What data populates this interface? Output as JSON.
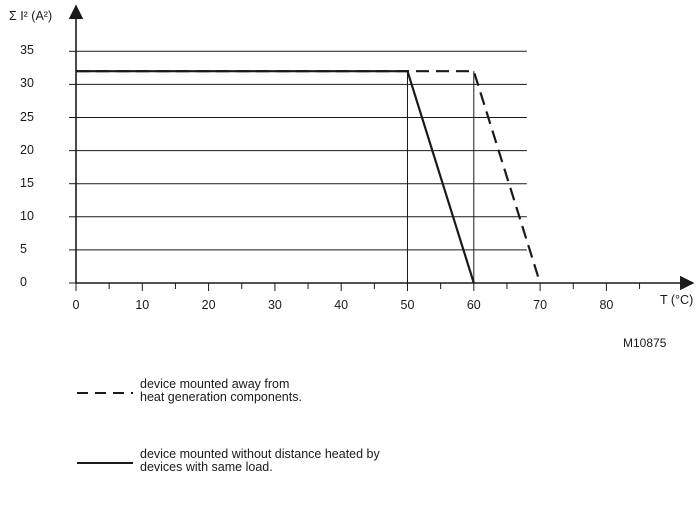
{
  "chart_data": {
    "type": "line",
    "ylabel": "Σ I² (A²)",
    "xlabel": "T (°C)",
    "figure_id": "M10875",
    "xlim": [
      0,
      90
    ],
    "ylim": [
      0,
      37
    ],
    "x_ticks": [
      0,
      10,
      20,
      30,
      40,
      50,
      60,
      70,
      80
    ],
    "x_minor_step": 5,
    "y_ticks": [
      0,
      5,
      10,
      15,
      20,
      25,
      30,
      35
    ],
    "grid": "horizontal",
    "series": [
      {
        "style": "dashed",
        "color": "#1a1a1a",
        "points": [
          [
            0,
            32
          ],
          [
            60,
            32
          ],
          [
            70,
            0
          ]
        ]
      },
      {
        "style": "solid",
        "color": "#1a1a1a",
        "points": [
          [
            0,
            32
          ],
          [
            50,
            32
          ],
          [
            60,
            0
          ]
        ]
      }
    ],
    "vertical_markers": [
      50,
      60
    ]
  },
  "legend": {
    "dashed": {
      "line1": "device mounted away from",
      "line2": "heat generation components."
    },
    "solid": {
      "line1": "device mounted without distance heated by",
      "line2": "devices with same load."
    }
  }
}
